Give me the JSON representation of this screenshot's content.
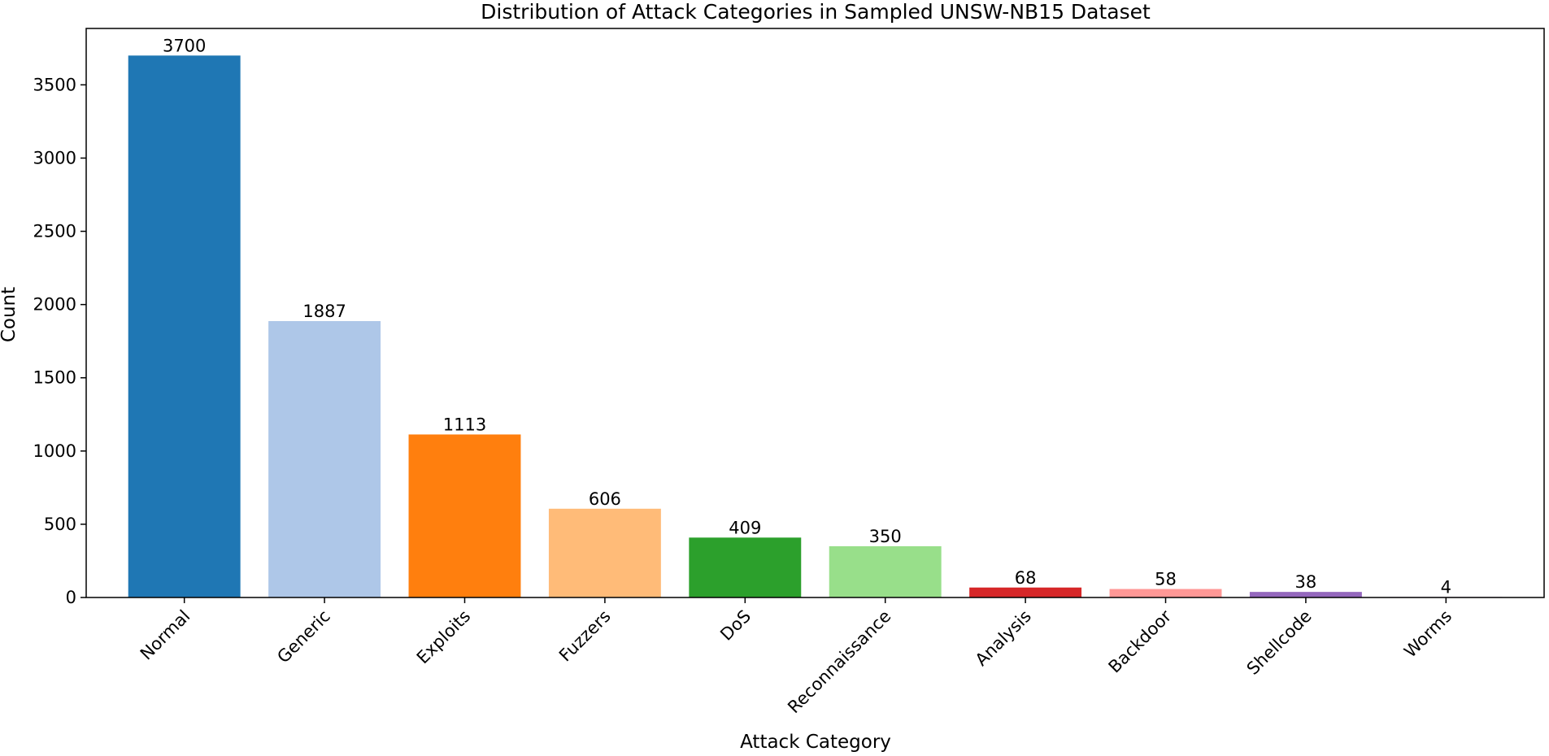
{
  "chart_data": {
    "type": "bar",
    "title": "Distribution of Attack Categories in Sampled UNSW-NB15 Dataset",
    "xlabel": "Attack Category",
    "ylabel": "Count",
    "categories": [
      "Normal",
      "Generic",
      "Exploits",
      "Fuzzers",
      "DoS",
      "Reconnaissance",
      "Analysis",
      "Backdoor",
      "Shellcode",
      "Worms"
    ],
    "values": [
      3700,
      1887,
      1113,
      606,
      409,
      350,
      68,
      58,
      38,
      4
    ],
    "colors": [
      "#1f77b4",
      "#aec7e8",
      "#ff7f0e",
      "#ffbb78",
      "#2ca02c",
      "#98df8a",
      "#d62728",
      "#ff9896",
      "#9467bd",
      "#c5b0d5"
    ],
    "yticks": [
      0,
      500,
      1000,
      1500,
      2000,
      2500,
      3000,
      3500
    ],
    "ylim": [
      0,
      3885
    ],
    "grid": false,
    "legend": "none"
  }
}
